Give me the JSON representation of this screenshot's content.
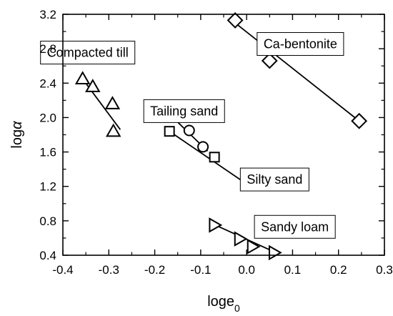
{
  "chart_data": {
    "type": "scatter",
    "title": "",
    "xlabel": {
      "base": "loge",
      "sub": "0"
    },
    "ylabel": {
      "base": "log",
      "greek": "α"
    },
    "xlim": [
      -0.4,
      0.3
    ],
    "ylim": [
      0.4,
      3.2
    ],
    "xticks": [
      -0.4,
      -0.3,
      -0.2,
      -0.1,
      0.0,
      0.1,
      0.2,
      0.3
    ],
    "xtick_labels": [
      "-0.4",
      "-0.3",
      "-0.2",
      "-0.1",
      "0.0",
      "0.1",
      "0.2",
      "0.3"
    ],
    "yticks": [
      0.4,
      0.8,
      1.2,
      1.6,
      2.0,
      2.4,
      2.8,
      3.2
    ],
    "ytick_labels": [
      "0.4",
      "0.8",
      "1.2",
      "1.6",
      "2.0",
      "2.4",
      "2.8",
      "3.2"
    ],
    "grid": false,
    "legend": "none",
    "series": [
      {
        "name": "Ca-bentonite",
        "marker": "diamond",
        "x": [
          -0.025,
          0.05,
          0.245
        ],
        "y": [
          3.13,
          2.66,
          1.96
        ],
        "fit": {
          "x": [
            -0.025,
            0.245
          ],
          "y": [
            3.1,
            1.96
          ]
        }
      },
      {
        "name": "Compacted till",
        "marker": "triangle-up",
        "x": [
          -0.357,
          -0.335,
          -0.292,
          -0.29
        ],
        "y": [
          2.45,
          2.36,
          2.16,
          1.84
        ],
        "fit": {
          "x": [
            -0.36,
            -0.275
          ],
          "y": [
            2.47,
            1.86
          ]
        }
      },
      {
        "name": "Tailing sand",
        "marker": "circle",
        "x": [
          -0.16,
          -0.125,
          -0.095
        ],
        "y": [
          2.02,
          1.85,
          1.66
        ],
        "fit": {
          "x": [
            -0.168,
            -0.085
          ],
          "y": [
            2.04,
            1.61
          ]
        }
      },
      {
        "name": "Silty sand",
        "marker": "square",
        "x": [
          -0.168,
          -0.07,
          0.003
        ],
        "y": [
          1.84,
          1.54,
          1.22
        ],
        "fit": {
          "x": [
            -0.168,
            0.005
          ],
          "y": [
            1.84,
            1.21
          ]
        }
      },
      {
        "name": "Sandy loam",
        "marker": "triangle-right",
        "x": [
          -0.07,
          -0.015,
          0.013,
          0.06
        ],
        "y": [
          0.75,
          0.59,
          0.5,
          0.43
        ],
        "fit": {
          "x": [
            -0.072,
            0.068
          ],
          "y": [
            0.76,
            0.42
          ]
        }
      }
    ],
    "annotations": [
      {
        "text": "Ca-bentonite",
        "x": 0.117,
        "y": 2.855
      },
      {
        "text": "Compacted till",
        "x": -0.346,
        "y": 2.755
      },
      {
        "text": "Tailing sand",
        "x": -0.136,
        "y": 2.075
      },
      {
        "text": "Silty sand",
        "x": 0.061,
        "y": 1.28
      },
      {
        "text": "Sandy loam",
        "x": 0.105,
        "y": 0.73
      }
    ]
  }
}
